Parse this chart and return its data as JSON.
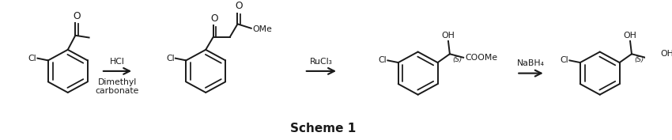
{
  "title": "Scheme 1",
  "title_fontsize": 11,
  "title_fontweight": "bold",
  "background_color": "#ffffff",
  "figure_width": 8.5,
  "figure_height": 1.77,
  "dpi": 100,
  "arrow1_label_top": "HCl",
  "arrow1_label_bottom1": "Dimethyl",
  "arrow1_label_bottom2": "carbonate",
  "arrow2_label_top": "RuCl₃",
  "arrow3_label_top": "NaBH₄",
  "line_color": "#1a1a1a",
  "line_width": 1.4,
  "font_size": 7.8
}
